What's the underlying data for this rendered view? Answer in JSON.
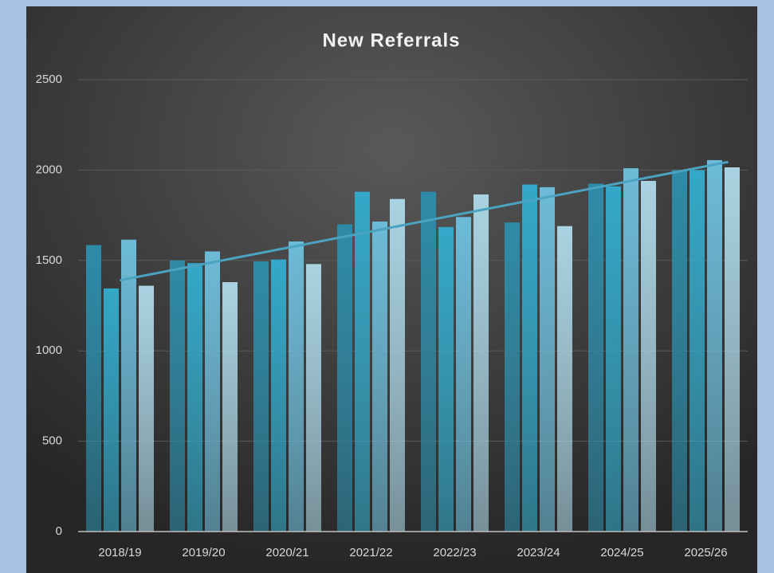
{
  "chart_data": {
    "type": "bar",
    "title": "New Referrals",
    "categories": [
      "2018/19",
      "2019/20",
      "2020/21",
      "2021/22",
      "2022/23",
      "2023/24",
      "2024/25",
      "2025/26"
    ],
    "series": [
      {
        "color": "#2e8ba8",
        "values": [
          1585,
          1500,
          1495,
          1700,
          1880,
          1710,
          1925,
          2000
        ]
      },
      {
        "color": "#33a8c8",
        "values": [
          1345,
          1485,
          1505,
          1880,
          1685,
          1920,
          1910,
          2000
        ]
      },
      {
        "color": "#6dbbd8",
        "values": [
          1615,
          1550,
          1605,
          1715,
          1740,
          1905,
          2010,
          2055
        ]
      },
      {
        "color": "#a9d3e2",
        "values": [
          1360,
          1380,
          1480,
          1840,
          1865,
          1690,
          1940,
          2015
        ]
      }
    ],
    "trendline": {
      "color": "#4aa3c0",
      "values": [
        1390,
        2045
      ]
    },
    "ylim": [
      0,
      2500
    ],
    "yticks": [
      0,
      500,
      1000,
      1500,
      2000,
      2500
    ],
    "grid": true
  }
}
